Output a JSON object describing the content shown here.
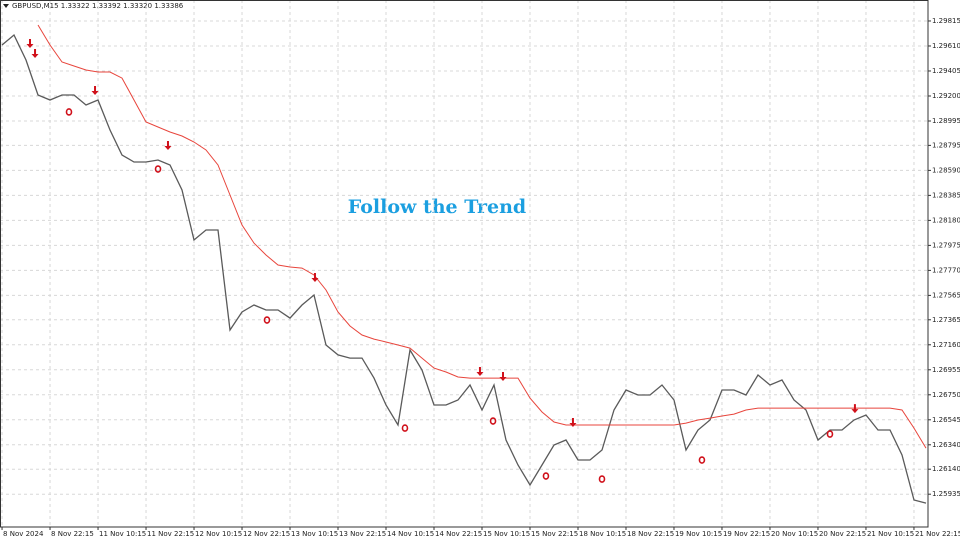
{
  "chart_data": {
    "type": "line",
    "header": "GBPUSD,M15  1.33322 1.33392 1.33320 1.33386",
    "annotation": "Follow the Trend",
    "grid": true,
    "xlim": [
      -0.17,
      77.17
    ],
    "ylim": [
      1.25666,
      1.29987
    ],
    "xticks": [
      {
        "value": 0,
        "label": "8 Nov 2024"
      },
      {
        "value": 4,
        "label": "8 Nov 22:15"
      },
      {
        "value": 8,
        "label": "11 Nov 10:15"
      },
      {
        "value": 12,
        "label": "11 Nov 22:15"
      },
      {
        "value": 16,
        "label": "12 Nov 10:15"
      },
      {
        "value": 20,
        "label": "12 Nov 22:15"
      },
      {
        "value": 24,
        "label": "13 Nov 10:15"
      },
      {
        "value": 28,
        "label": "13 Nov 22:15"
      },
      {
        "value": 32,
        "label": "14 Nov 10:15"
      },
      {
        "value": 36,
        "label": "14 Nov 22:15"
      },
      {
        "value": 40,
        "label": "15 Nov 10:15"
      },
      {
        "value": 44,
        "label": "15 Nov 22:15"
      },
      {
        "value": 48,
        "label": "18 Nov 10:15"
      },
      {
        "value": 52,
        "label": "18 Nov 22:15"
      },
      {
        "value": 56,
        "label": "19 Nov 10:15"
      },
      {
        "value": 60,
        "label": "19 Nov 22:15"
      },
      {
        "value": 64,
        "label": "20 Nov 10:15"
      },
      {
        "value": 68,
        "label": "20 Nov 22:15"
      },
      {
        "value": 72,
        "label": "21 Nov 10:15"
      },
      {
        "value": 76,
        "label": "21 Nov 22:15"
      }
    ],
    "yticks": [
      1.29815,
      {
        "value": 1.2961,
        "label": "1.29610"
      },
      1.29405,
      {
        "value": 1.292,
        "label": "1.29200"
      },
      1.28995,
      1.28795,
      {
        "value": 1.2859,
        "label": "1.28590"
      },
      1.28385,
      {
        "value": 1.2818,
        "label": "1.28180"
      },
      1.27975,
      {
        "value": 1.2777,
        "label": "1.27770"
      },
      1.27565,
      1.27365,
      {
        "value": 1.2716,
        "label": "1.27160"
      },
      1.26955,
      {
        "value": 1.2675,
        "label": "1.26750"
      },
      1.26545,
      {
        "value": 1.2634,
        "label": "1.26340"
      },
      {
        "value": 1.2614,
        "label": "1.26140"
      },
      1.25935
    ],
    "x": [
      0,
      1,
      2,
      3,
      4,
      5,
      6,
      7,
      8,
      9,
      10,
      11,
      12,
      13,
      14,
      15,
      16,
      17,
      18,
      19,
      20,
      21,
      22,
      23,
      24,
      25,
      26,
      27,
      28,
      29,
      30,
      31,
      32,
      33,
      34,
      35,
      36,
      37,
      38,
      39,
      40,
      41,
      42,
      43,
      44,
      45,
      46,
      47,
      48,
      49,
      50,
      51,
      52,
      53,
      54,
      55,
      56,
      57,
      58,
      59,
      60,
      61,
      62,
      63,
      64,
      65,
      66,
      67,
      68,
      69,
      70,
      71,
      72,
      73,
      74,
      75,
      76,
      77
    ],
    "series": [
      {
        "color": "#5a5a5a",
        "values": [
          1.29618,
          1.297,
          1.29495,
          1.29208,
          1.29167,
          1.29208,
          1.29208,
          1.29126,
          1.29167,
          1.28921,
          1.28716,
          1.28659,
          1.28659,
          1.28675,
          1.28634,
          1.28429,
          1.28019,
          1.28101,
          1.28101,
          1.27281,
          1.27429,
          1.27486,
          1.27445,
          1.27445,
          1.27379,
          1.27486,
          1.27568,
          1.27158,
          1.27077,
          1.27051,
          1.27051,
          1.26887,
          1.26666,
          1.26502,
          1.27117,
          1.26953,
          1.26666,
          1.26666,
          1.26707,
          1.2683,
          1.26625,
          1.2683,
          1.26379,
          1.26174,
          1.2601,
          1.26174,
          1.26338,
          1.26379,
          1.26215,
          1.26215,
          1.26297,
          1.26625,
          1.26789,
          1.26748,
          1.26748,
          1.2683,
          1.26707,
          1.26297,
          1.26461,
          1.26543,
          1.26789,
          1.26789,
          1.26748,
          1.26912,
          1.2683,
          1.26871,
          1.26707,
          1.26625,
          1.26379,
          1.26461,
          1.26461,
          1.26543,
          1.26584,
          1.26461,
          1.26461,
          1.26256,
          1.25887,
          1.25862
        ]
      },
      {
        "color": "#e8453c",
        "values": [
          null,
          null,
          null,
          1.29782,
          1.29618,
          1.29479,
          1.29446,
          1.29413,
          1.29397,
          1.29397,
          1.29347,
          1.29167,
          1.28987,
          1.28946,
          1.28905,
          1.28872,
          1.28823,
          1.28757,
          1.28634,
          1.28388,
          1.28142,
          1.27994,
          1.27896,
          1.27814,
          1.27798,
          1.27789,
          1.27732,
          1.27609,
          1.27429,
          1.27314,
          1.2724,
          1.27207,
          1.27183,
          1.27158,
          1.27133,
          1.27051,
          1.26969,
          1.26937,
          1.26896,
          1.26887,
          1.26887,
          1.26887,
          1.26887,
          1.26887,
          1.26723,
          1.26609,
          1.26527,
          1.26502,
          1.26502,
          1.26502,
          1.26502,
          1.26502,
          1.26502,
          1.26502,
          1.26502,
          1.26502,
          1.26502,
          1.26518,
          1.26543,
          1.26559,
          1.26576,
          1.26592,
          1.26625,
          1.26641,
          1.26641,
          1.26641,
          1.26641,
          1.26641,
          1.26641,
          1.26641,
          1.26641,
          1.26641,
          1.26641,
          1.26641,
          1.26641,
          1.26625,
          1.26477,
          1.26313
        ]
      },
      {
        "color": "#d0101a",
        "marker": "arrow-down",
        "x": [
          2.33,
          2.75,
          7.75,
          13.83,
          26.08,
          39.83,
          41.75,
          47.58,
          71.08
        ],
        "values": [
          1.29593,
          1.29511,
          1.29208,
          1.28757,
          1.27675,
          1.26904,
          1.26863,
          1.26486,
          1.266
        ]
      },
      {
        "color": "#d0101a",
        "marker": "circle",
        "x": [
          5.58,
          13,
          22.08,
          33.58,
          40.92,
          45.33,
          50,
          58.33,
          69
        ],
        "values": [
          1.29069,
          1.28601,
          1.27363,
          1.26477,
          1.26535,
          1.26084,
          1.26059,
          1.26215,
          1.26428
        ]
      }
    ]
  }
}
